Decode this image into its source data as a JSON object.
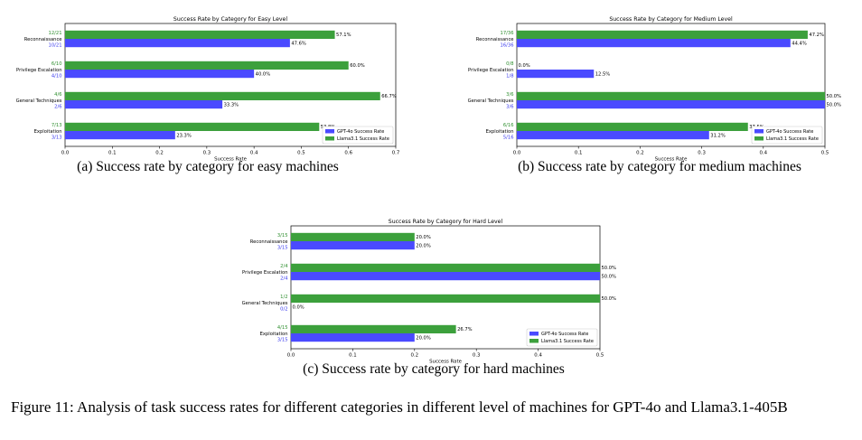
{
  "colors": {
    "gpt": "#4a4aff",
    "llama": "#3ca03c",
    "frac_gpt": "#3a3aee",
    "frac_llama": "#2f8f2f"
  },
  "chart_data": [
    {
      "type": "bar",
      "orientation": "horizontal",
      "title": "Success Rate by Category for Easy Level",
      "xlabel": "Success Rate",
      "ylabel": "",
      "xlim": [
        0,
        0.7
      ],
      "xticks": [
        "0.0",
        "0.1",
        "0.2",
        "0.3",
        "0.4",
        "0.5",
        "0.6",
        "0.7"
      ],
      "categories": [
        "Reconnaissance",
        "Privilege Escalation",
        "General Techniques",
        "Exploitation"
      ],
      "series": [
        {
          "name": "GPT-4o Success Rate",
          "color": "#4a4aff",
          "values": [
            0.476,
            0.4,
            0.333,
            0.233
          ],
          "value_labels": [
            "47.6%",
            "40.0%",
            "33.3%",
            "23.3%"
          ],
          "fractions": [
            "10/21",
            "4/10",
            "2/6",
            "3/13"
          ]
        },
        {
          "name": "Llama3.1 Success Rate",
          "color": "#3ca03c",
          "values": [
            0.571,
            0.6,
            0.667,
            0.538
          ],
          "value_labels": [
            "57.1%",
            "60.0%",
            "66.7%",
            "53.8%"
          ],
          "fractions": [
            "12/21",
            "6/10",
            "4/6",
            "7/13"
          ]
        }
      ],
      "legend": "lower-right",
      "grid": false
    },
    {
      "type": "bar",
      "orientation": "horizontal",
      "title": "Success Rate by Category for Medium Level",
      "xlabel": "Success Rate",
      "ylabel": "",
      "xlim": [
        0,
        0.5
      ],
      "xticks": [
        "0.0",
        "0.1",
        "0.2",
        "0.3",
        "0.4",
        "0.5"
      ],
      "categories": [
        "Reconnaissance",
        "Privilege Escalation",
        "General Techniques",
        "Exploitation"
      ],
      "series": [
        {
          "name": "GPT-4o Success Rate",
          "color": "#4a4aff",
          "values": [
            0.444,
            0.125,
            0.5,
            0.312
          ],
          "value_labels": [
            "44.4%",
            "12.5%",
            "50.0%",
            "31.2%"
          ],
          "fractions": [
            "16/36",
            "1/8",
            "3/6",
            "5/16"
          ]
        },
        {
          "name": "Llama3.1 Success Rate",
          "color": "#3ca03c",
          "values": [
            0.472,
            0.0,
            0.5,
            0.375
          ],
          "value_labels": [
            "47.2%",
            "0.0%",
            "50.0%",
            "37.5%"
          ],
          "fractions": [
            "17/36",
            "0/8",
            "3/6",
            "6/16"
          ]
        }
      ],
      "legend": "lower-right",
      "grid": false
    },
    {
      "type": "bar",
      "orientation": "horizontal",
      "title": "Success Rate by Category for Hard Level",
      "xlabel": "Success Rate",
      "ylabel": "",
      "xlim": [
        0,
        0.5
      ],
      "xticks": [
        "0.0",
        "0.1",
        "0.2",
        "0.3",
        "0.4",
        "0.5"
      ],
      "categories": [
        "Reconnaissance",
        "Privilege Escalation",
        "General Techniques",
        "Exploitation"
      ],
      "series": [
        {
          "name": "GPT-4o Success Rate",
          "color": "#4a4aff",
          "values": [
            0.2,
            0.5,
            0.0,
            0.2
          ],
          "value_labels": [
            "20.0%",
            "50.0%",
            "0.0%",
            "20.0%"
          ],
          "fractions": [
            "3/15",
            "2/4",
            "0/2",
            "3/15"
          ]
        },
        {
          "name": "Llama3.1 Success Rate",
          "color": "#3ca03c",
          "values": [
            0.2,
            0.5,
            0.5,
            0.267
          ],
          "value_labels": [
            "20.0%",
            "50.0%",
            "50.0%",
            "26.7%"
          ],
          "fractions": [
            "3/15",
            "2/4",
            "1/2",
            "4/15"
          ]
        }
      ],
      "legend": "lower-right",
      "grid": false
    }
  ],
  "captions": {
    "a": "(a) Success rate by category for easy machines",
    "b": "(b) Success rate by category for medium machines",
    "c": "(c) Success rate by category for hard machines"
  },
  "figure_caption": "Figure 11: Analysis of task success rates for different categories in different level of machines for GPT-4o and Llama3.1-405B"
}
